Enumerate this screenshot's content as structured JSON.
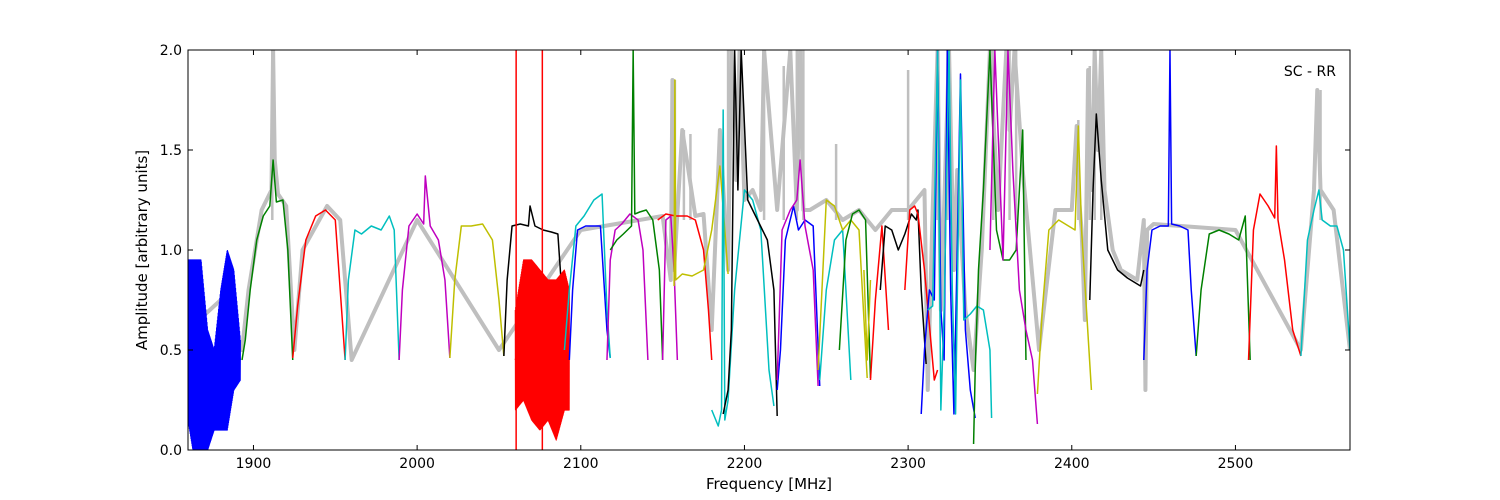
{
  "chart_data": {
    "type": "line",
    "title": "",
    "annotation": "SC - RR",
    "xlabel": "Frequency [MHz]",
    "ylabel": "Amplitude [arbitrary units]",
    "xlim": [
      1860,
      2570
    ],
    "ylim": [
      0.0,
      2.0
    ],
    "xticks": [
      1900,
      2000,
      2100,
      2200,
      2300,
      2400,
      2500
    ],
    "yticks": [
      0.0,
      0.5,
      1.0,
      1.5,
      2.0
    ],
    "xtick_labels": [
      "1900",
      "2000",
      "2100",
      "2200",
      "2300",
      "2400",
      "2500"
    ],
    "ytick_labels": [
      "0.0",
      "0.5",
      "1.0",
      "1.5",
      "2.0"
    ],
    "grid": false,
    "background_series": {
      "color": "#bfbfbf",
      "x": [
        1860,
        1880,
        1893,
        1897,
        1905,
        1911,
        1912,
        1913,
        1915,
        1920,
        1925,
        1930,
        1945,
        1953,
        1960,
        2000,
        2050,
        2100,
        2150,
        2155,
        2156,
        2157,
        2162,
        2170,
        2175,
        2180,
        2185,
        2190,
        2192,
        2195,
        2197,
        2200,
        2205,
        2210,
        2212,
        2220,
        2228,
        2232,
        2234,
        2236,
        2240,
        2250,
        2260,
        2270,
        2280,
        2290,
        2300,
        2310,
        2312,
        2315,
        2318,
        2320,
        2325,
        2328,
        2330,
        2335,
        2340,
        2345,
        2350,
        2355,
        2360,
        2362,
        2365,
        2370,
        2380,
        2390,
        2400,
        2403,
        2404,
        2406,
        2408,
        2410,
        2412,
        2414,
        2416,
        2418,
        2420,
        2425,
        2430,
        2440,
        2444,
        2445,
        2446,
        2450,
        2500,
        2540,
        2548,
        2550,
        2552,
        2560,
        2570
      ],
      "y": [
        0.6,
        0.75,
        0.5,
        0.8,
        1.2,
        1.3,
        2.0,
        1.45,
        1.28,
        1.22,
        0.5,
        1.0,
        1.22,
        1.15,
        0.45,
        1.15,
        0.5,
        1.1,
        1.17,
        0.85,
        1.85,
        0.9,
        1.6,
        1.17,
        1.18,
        0.6,
        1.6,
        0.9,
        2.0,
        1.35,
        2.0,
        1.25,
        1.3,
        1.2,
        2.0,
        1.2,
        2.0,
        1.2,
        2.0,
        1.2,
        1.2,
        1.25,
        1.15,
        1.2,
        1.1,
        1.2,
        1.2,
        1.3,
        0.3,
        1.2,
        2.0,
        0.7,
        2.0,
        0.9,
        1.4,
        0.7,
        0.4,
        1.0,
        2.0,
        1.2,
        2.0,
        1.6,
        2.0,
        1.4,
        0.5,
        1.2,
        1.2,
        1.62,
        1.3,
        1.1,
        0.65,
        1.9,
        1.3,
        2.0,
        1.5,
        2.0,
        1.3,
        1.0,
        0.9,
        0.85,
        1.15,
        0.3,
        1.1,
        1.13,
        1.1,
        0.5,
        1.3,
        1.8,
        1.3,
        1.2,
        0.5
      ],
      "spikes": [
        {
          "x": 1911.5,
          "y": 2.0
        },
        {
          "x": 2157.5,
          "y": 1.85
        },
        {
          "x": 2163,
          "y": 1.6
        },
        {
          "x": 2167,
          "y": 1.58
        },
        {
          "x": 2190,
          "y": 2.0
        },
        {
          "x": 2212,
          "y": 2.0
        },
        {
          "x": 2224,
          "y": 1.92
        },
        {
          "x": 2232,
          "y": 2.0
        },
        {
          "x": 2236,
          "y": 2.0
        },
        {
          "x": 2256,
          "y": 1.53
        },
        {
          "x": 2300,
          "y": 1.9
        },
        {
          "x": 2318,
          "y": 2.0
        },
        {
          "x": 2324,
          "y": 2.0
        },
        {
          "x": 2352,
          "y": 2.0
        },
        {
          "x": 2362,
          "y": 2.0
        },
        {
          "x": 2366,
          "y": 2.0
        },
        {
          "x": 2404,
          "y": 1.65
        },
        {
          "x": 2411,
          "y": 1.92
        },
        {
          "x": 2414,
          "y": 2.0
        },
        {
          "x": 2418,
          "y": 2.0
        },
        {
          "x": 2552,
          "y": 1.8
        }
      ]
    },
    "series": [
      {
        "color": "#0000ff",
        "x": [
          1860,
          1864,
          1868,
          1872,
          1876,
          1880,
          1884,
          1888,
          1892
        ],
        "y": [
          0.55,
          0.45,
          0.4,
          0.3,
          0.3,
          0.45,
          0.55,
          0.6,
          0.45
        ],
        "band_amplitude": [
          0.4,
          0.5,
          0.55,
          0.3,
          0.2,
          0.35,
          0.45,
          0.3,
          0.1
        ]
      },
      {
        "color": "#008000",
        "x": [
          1893,
          1895,
          1898,
          1902,
          1906,
          1910,
          1912,
          1914,
          1918,
          1921,
          1924
        ],
        "y": [
          0.45,
          0.55,
          0.8,
          1.05,
          1.17,
          1.22,
          1.45,
          1.24,
          1.25,
          1.0,
          0.45
        ]
      },
      {
        "color": "#ff0000",
        "x": [
          1924,
          1927,
          1932,
          1938,
          1944,
          1950,
          1953,
          1956
        ],
        "y": [
          0.46,
          0.72,
          1.05,
          1.17,
          1.2,
          1.15,
          0.8,
          0.45
        ]
      },
      {
        "color": "#00bfbf",
        "x": [
          1956,
          1958,
          1962,
          1966,
          1972,
          1978,
          1983,
          1986,
          1989
        ],
        "y": [
          0.45,
          0.85,
          1.1,
          1.08,
          1.12,
          1.1,
          1.17,
          1.1,
          0.45
        ]
      },
      {
        "color": "#bf00bf",
        "x": [
          1989,
          1991,
          1995,
          2000,
          2004,
          2005,
          2008,
          2013,
          2017,
          2020
        ],
        "y": [
          0.45,
          0.8,
          1.12,
          1.18,
          1.13,
          1.37,
          1.12,
          1.05,
          0.85,
          0.46
        ]
      },
      {
        "color": "#bfbf00",
        "x": [
          2020,
          2023,
          2027,
          2033,
          2040,
          2046,
          2050,
          2053
        ],
        "y": [
          0.46,
          0.85,
          1.12,
          1.12,
          1.13,
          1.05,
          0.75,
          0.47
        ]
      },
      {
        "color": "#000000",
        "x": [
          2053,
          2055,
          2058,
          2063,
          2068,
          2069,
          2072,
          2077,
          2082,
          2086,
          2090,
          2092
        ],
        "y": [
          0.47,
          0.85,
          1.12,
          1.13,
          1.12,
          1.22,
          1.12,
          1.1,
          1.09,
          1.08,
          0.6,
          0.45
        ]
      },
      {
        "color": "#ff0000",
        "x": [
          2060,
          2065,
          2070,
          2075,
          2080,
          2085,
          2090,
          2093
        ],
        "y": [
          0.45,
          0.6,
          0.55,
          0.5,
          0.5,
          0.45,
          0.55,
          0.5
        ],
        "band_amplitude": [
          0.25,
          0.35,
          0.4,
          0.4,
          0.35,
          0.4,
          0.35,
          0.3
        ],
        "spikes": [
          {
            "x": 2060.5,
            "y": 2.0
          },
          {
            "x": 2076.5,
            "y": 2.0
          }
        ]
      },
      {
        "color": "#0000ff",
        "x": [
          2093,
          2095,
          2098,
          2103,
          2108,
          2112,
          2116,
          2118
        ],
        "y": [
          0.45,
          0.8,
          1.1,
          1.12,
          1.12,
          1.12,
          0.6,
          0.46
        ]
      },
      {
        "color": "#00bfbf",
        "x": [
          2090,
          2093,
          2097,
          2102,
          2108,
          2113,
          2116,
          2118
        ],
        "y": [
          0.5,
          0.8,
          1.12,
          1.17,
          1.25,
          1.28,
          0.7,
          0.46
        ]
      },
      {
        "color": "#bf00bf",
        "x": [
          2116,
          2118,
          2121,
          2125,
          2130,
          2135,
          2138,
          2141
        ],
        "y": [
          0.45,
          0.95,
          1.1,
          1.13,
          1.18,
          1.15,
          1.0,
          0.45
        ]
      },
      {
        "color": "#008000",
        "x": [
          2118,
          2122,
          2126,
          2131,
          2132,
          2133,
          2136,
          2140,
          2144,
          2148,
          2150
        ],
        "y": [
          1.0,
          1.05,
          1.08,
          1.12,
          2.0,
          1.18,
          1.19,
          1.2,
          1.15,
          0.9,
          0.45
        ]
      },
      {
        "color": "#bf00bf",
        "x": [
          2150,
          2152,
          2155,
          2157,
          2159
        ],
        "y": [
          0.45,
          1.15,
          1.17,
          0.9,
          0.45
        ]
      },
      {
        "color": "#ff0000",
        "x": [
          2147,
          2152,
          2158,
          2165,
          2170,
          2175,
          2178,
          2180
        ],
        "y": [
          1.15,
          1.18,
          1.17,
          1.17,
          1.15,
          1.0,
          0.7,
          0.45
        ]
      },
      {
        "color": "#bfbf00",
        "x": [
          2157,
          2157.5,
          2158,
          2162,
          2168,
          2175,
          2180,
          2185,
          2188,
          2190
        ],
        "y": [
          0.82,
          1.85,
          0.85,
          0.88,
          0.87,
          0.9,
          1.1,
          1.42,
          1.1,
          0.88
        ]
      },
      {
        "color": "#00bfbf",
        "x": [
          2180,
          2184,
          2186,
          2187,
          2188,
          2190,
          2194,
          2200,
          2205,
          2210,
          2215,
          2218
        ],
        "y": [
          0.2,
          0.12,
          0.2,
          1.7,
          0.15,
          0.25,
          0.8,
          1.3,
          1.25,
          1.1,
          0.4,
          0.22
        ]
      },
      {
        "color": "#000000",
        "x": [
          2187,
          2190,
          2192,
          2194,
          2196,
          2198,
          2202,
          2208,
          2214,
          2218,
          2220
        ],
        "y": [
          0.18,
          0.3,
          0.6,
          2.0,
          1.3,
          2.0,
          1.25,
          1.15,
          1.05,
          0.8,
          0.17
        ]
      },
      {
        "color": "#0000ff",
        "x": [
          2220,
          2222,
          2225,
          2230,
          2233,
          2237,
          2242,
          2246
        ],
        "y": [
          0.3,
          0.5,
          1.05,
          1.22,
          1.1,
          1.15,
          1.12,
          0.32
        ]
      },
      {
        "color": "#bf00bf",
        "x": [
          2220,
          2223,
          2228,
          2232,
          2234,
          2237,
          2242,
          2245
        ],
        "y": [
          0.35,
          1.1,
          1.2,
          1.25,
          1.45,
          1.12,
          0.9,
          0.32
        ]
      },
      {
        "color": "#00bfbf",
        "x": [
          2246,
          2250,
          2255,
          2260,
          2262,
          2265
        ],
        "y": [
          0.35,
          0.8,
          1.05,
          1.1,
          0.8,
          0.35
        ]
      },
      {
        "color": "#bfbf00",
        "x": [
          2245,
          2250,
          2255,
          2260,
          2265,
          2270,
          2275
        ],
        "y": [
          0.4,
          1.25,
          1.22,
          1.1,
          1.15,
          1.1,
          0.36
        ]
      },
      {
        "color": "#008000",
        "x": [
          2258,
          2262,
          2266,
          2270,
          2274,
          2277
        ],
        "y": [
          0.5,
          1.05,
          1.18,
          1.2,
          1.15,
          0.36
        ]
      },
      {
        "color": "#bfbf00",
        "x": [
          2273,
          2275,
          2277
        ],
        "y": [
          0.9,
          0.45,
          0.85
        ]
      },
      {
        "color": "#ff0000",
        "x": [
          2277,
          2280,
          2284,
          2288
        ],
        "y": [
          0.35,
          0.75,
          1.12,
          0.6
        ]
      },
      {
        "color": "#000000",
        "x": [
          2283,
          2286,
          2290,
          2294,
          2298,
          2302,
          2305,
          2306,
          2308,
          2311
        ],
        "y": [
          0.8,
          1.12,
          1.1,
          1.0,
          1.08,
          1.18,
          1.15,
          1.2,
          0.8,
          0.43
        ]
      },
      {
        "color": "#ff0000",
        "x": [
          2298,
          2301,
          2304,
          2306,
          2310,
          2316,
          2318
        ],
        "y": [
          0.8,
          1.2,
          1.22,
          1.18,
          0.9,
          0.35,
          0.4
        ]
      },
      {
        "color": "#0000ff",
        "x": [
          2308,
          2310,
          2313,
          2316,
          2318,
          2320,
          2322,
          2324,
          2326,
          2328,
          2330,
          2332,
          2335,
          2338,
          2341
        ],
        "y": [
          0.18,
          0.5,
          0.8,
          0.75,
          2.0,
          0.7,
          0.45,
          2.0,
          0.8,
          0.18,
          1.0,
          1.88,
          0.6,
          0.3,
          0.16
        ]
      },
      {
        "color": "#00bfbf",
        "x": [
          2312,
          2315,
          2318,
          2320,
          2322,
          2325,
          2327,
          2329,
          2332,
          2334,
          2338,
          2342,
          2346,
          2350,
          2351
        ],
        "y": [
          0.7,
          0.72,
          2.0,
          0.2,
          0.7,
          2.0,
          0.8,
          0.18,
          1.85,
          0.65,
          0.68,
          0.72,
          0.7,
          0.5,
          0.16
        ]
      },
      {
        "color": "#008000",
        "x": [
          2340,
          2341,
          2343,
          2346,
          2350,
          2354,
          2358,
          2362,
          2366,
          2370,
          2372
        ],
        "y": [
          0.03,
          0.4,
          0.9,
          1.3,
          2.0,
          1.1,
          0.95,
          0.95,
          1.0,
          1.6,
          0.45
        ]
      },
      {
        "color": "#bf00bf",
        "x": [
          2350,
          2353,
          2358,
          2361,
          2364,
          2368,
          2372,
          2376,
          2379
        ],
        "y": [
          1.0,
          2.0,
          0.95,
          2.0,
          1.4,
          0.8,
          0.6,
          0.45,
          0.13
        ]
      },
      {
        "color": "#bfbf00",
        "x": [
          2379,
          2382,
          2386,
          2392,
          2398,
          2402,
          2404,
          2406,
          2409,
          2412
        ],
        "y": [
          0.28,
          0.7,
          1.1,
          1.15,
          1.12,
          1.1,
          1.62,
          1.1,
          0.7,
          0.3
        ]
      },
      {
        "color": "#000000",
        "x": [
          2411,
          2413,
          2415,
          2418,
          2422,
          2428,
          2434,
          2440,
          2442,
          2444
        ],
        "y": [
          0.75,
          1.3,
          1.68,
          1.35,
          1.0,
          0.9,
          0.86,
          0.83,
          0.82,
          0.9
        ]
      },
      {
        "color": "#0000ff",
        "x": [
          2444,
          2446,
          2449,
          2454,
          2459,
          2460,
          2461,
          2466,
          2471,
          2473,
          2476
        ],
        "y": [
          0.45,
          0.9,
          1.1,
          1.12,
          1.12,
          2.0,
          1.13,
          1.12,
          1.1,
          0.8,
          0.47
        ]
      },
      {
        "color": "#008000",
        "x": [
          2476,
          2479,
          2484,
          2490,
          2496,
          2502,
          2506,
          2509
        ],
        "y": [
          0.47,
          0.8,
          1.08,
          1.1,
          1.08,
          1.05,
          1.17,
          0.45
        ]
      },
      {
        "color": "#ff0000",
        "x": [
          2508,
          2511,
          2515,
          2520,
          2524,
          2525,
          2526,
          2530,
          2535,
          2540
        ],
        "y": [
          0.45,
          1.1,
          1.28,
          1.22,
          1.16,
          1.52,
          1.15,
          0.95,
          0.6,
          0.47
        ]
      },
      {
        "color": "#00bfbf",
        "x": [
          2540,
          2544,
          2548,
          2551,
          2553,
          2558,
          2562,
          2566,
          2570
        ],
        "y": [
          0.47,
          1.05,
          1.2,
          1.3,
          1.15,
          1.12,
          1.12,
          1.0,
          0.5
        ]
      }
    ]
  }
}
